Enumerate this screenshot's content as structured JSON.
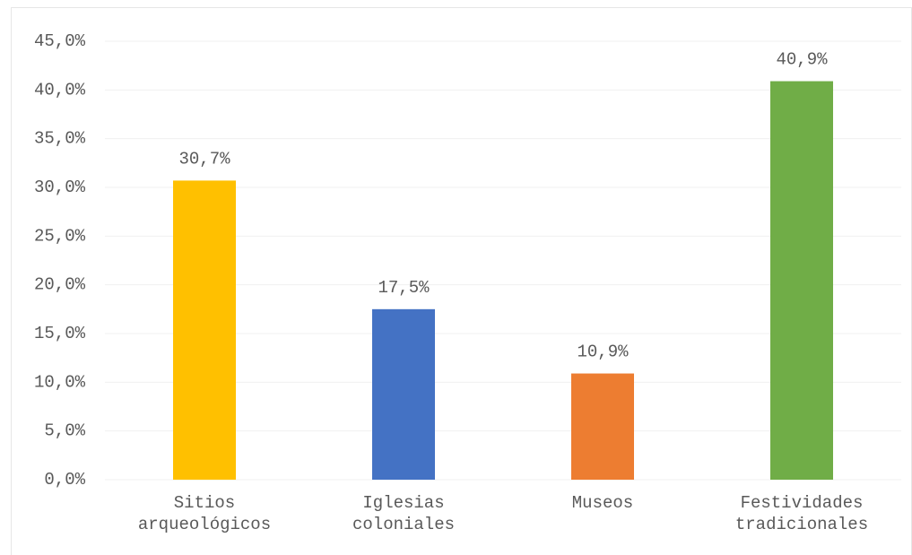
{
  "chart_data": {
    "type": "bar",
    "categories": [
      "Sitios arqueológicos",
      "Iglesias coloniales",
      "Museos",
      "Festividades tradicionales"
    ],
    "values": [
      30.7,
      17.5,
      10.9,
      40.9
    ],
    "value_labels": [
      "30,7%",
      "17,5%",
      "10,9%",
      "40,9%"
    ],
    "colors": [
      "#ffc000",
      "#4472c4",
      "#ed7d31",
      "#70ad47"
    ],
    "ylim": [
      0,
      45
    ],
    "yticks": [
      {
        "value": 0,
        "label": "0,0%"
      },
      {
        "value": 5,
        "label": "5,0%"
      },
      {
        "value": 10,
        "label": "10,0%"
      },
      {
        "value": 15,
        "label": "15,0%"
      },
      {
        "value": 20,
        "label": "20,0%"
      },
      {
        "value": 25,
        "label": "25,0%"
      },
      {
        "value": 30,
        "label": "30,0%"
      },
      {
        "value": 35,
        "label": "35,0%"
      },
      {
        "value": 40,
        "label": "40,0%"
      },
      {
        "value": 45,
        "label": "45,0%"
      }
    ],
    "grid": true
  }
}
